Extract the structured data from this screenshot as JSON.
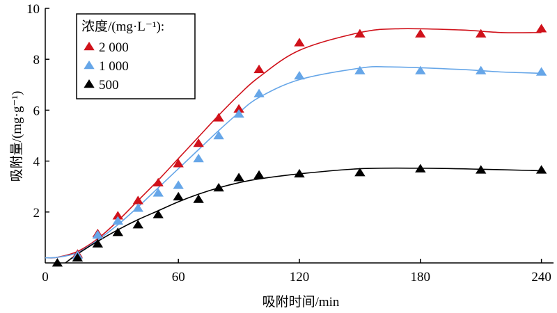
{
  "chart_data": {
    "type": "scatter",
    "title": "",
    "xlabel": "吸附时间/min",
    "ylabel": "吸附量/(mg·g⁻¹)",
    "xlim": [
      -6,
      246
    ],
    "ylim": [
      0,
      10
    ],
    "xticks": [
      0,
      60,
      120,
      180,
      240
    ],
    "yticks": [
      2,
      4,
      6,
      8,
      10
    ],
    "grid": false,
    "legend": {
      "title": "浓度/(mg·L⁻¹):",
      "placement": "top-left"
    },
    "series": [
      {
        "name": "2 000",
        "color": "#d0121b",
        "x": [
          10,
          20,
          30,
          40,
          50,
          60,
          70,
          80,
          90,
          100,
          120,
          150,
          180,
          210,
          240
        ],
        "y": [
          0.35,
          1.15,
          1.85,
          2.45,
          3.15,
          3.9,
          4.7,
          5.7,
          6.05,
          7.6,
          8.65,
          9.0,
          9.0,
          9.0,
          9.2
        ],
        "fit_x": [
          -6,
          0,
          10,
          20,
          30,
          40,
          50,
          60,
          70,
          80,
          90,
          100,
          120,
          150,
          170,
          200,
          220,
          240
        ],
        "fit_y": [
          0.2,
          0.22,
          0.45,
          0.95,
          1.65,
          2.45,
          3.25,
          4.1,
          4.95,
          5.8,
          6.6,
          7.3,
          8.35,
          9.05,
          9.2,
          9.15,
          9.05,
          9.05
        ]
      },
      {
        "name": "1 000",
        "color": "#66a6e8",
        "x": [
          10,
          20,
          30,
          40,
          50,
          60,
          70,
          80,
          90,
          100,
          120,
          150,
          180,
          210,
          240
        ],
        "y": [
          0.3,
          1.1,
          1.65,
          2.15,
          2.75,
          3.05,
          4.1,
          5.0,
          5.85,
          6.65,
          7.35,
          7.55,
          7.55,
          7.55,
          7.5
        ],
        "fit_x": [
          -6,
          0,
          10,
          20,
          30,
          40,
          50,
          60,
          70,
          80,
          90,
          100,
          120,
          150,
          165,
          200,
          220,
          240
        ],
        "fit_y": [
          0.2,
          0.22,
          0.4,
          0.9,
          1.5,
          2.2,
          2.95,
          3.7,
          4.45,
          5.2,
          5.9,
          6.5,
          7.2,
          7.65,
          7.7,
          7.6,
          7.5,
          7.45
        ]
      },
      {
        "name": "500",
        "color": "#000000",
        "x": [
          0,
          10,
          20,
          30,
          40,
          50,
          60,
          70,
          80,
          90,
          100,
          120,
          150,
          180,
          210,
          240
        ],
        "y": [
          0,
          0.2,
          0.75,
          1.2,
          1.5,
          1.9,
          2.6,
          2.5,
          2.95,
          3.35,
          3.45,
          3.5,
          3.55,
          3.7,
          3.65,
          3.65
        ],
        "fit_x": [
          4,
          10,
          20,
          30,
          40,
          50,
          60,
          70,
          80,
          90,
          100,
          120,
          150,
          180,
          210,
          240
        ],
        "fit_y": [
          0,
          0.35,
          0.85,
          1.3,
          1.7,
          2.05,
          2.4,
          2.7,
          2.95,
          3.15,
          3.3,
          3.5,
          3.7,
          3.72,
          3.68,
          3.62
        ]
      }
    ]
  }
}
